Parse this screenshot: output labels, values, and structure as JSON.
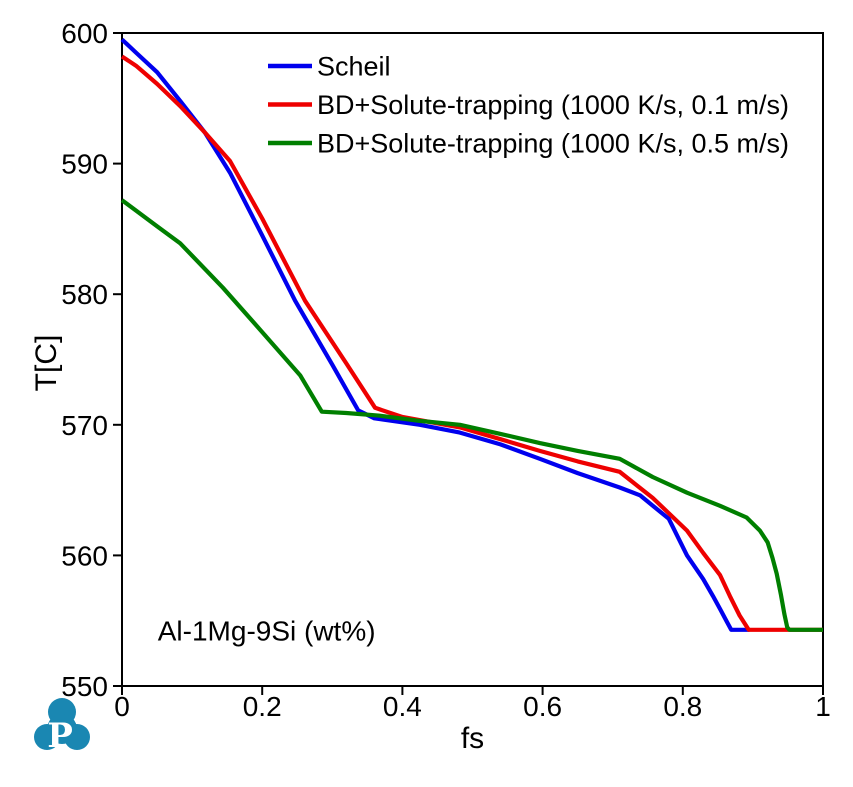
{
  "chart_data": {
    "type": "line",
    "title": "",
    "xlabel": "fs",
    "ylabel": "T[C]",
    "xlim": [
      0,
      1
    ],
    "ylim": [
      550,
      600
    ],
    "xticks": [
      0,
      0.2,
      0.4,
      0.6,
      0.8,
      1
    ],
    "yticks": [
      550,
      560,
      570,
      580,
      590,
      600
    ],
    "grid": false,
    "legend": {
      "position": "top-left-inside"
    },
    "annotation": {
      "text": "Al-1Mg-9Si (wt%)",
      "fs": 0.051,
      "T": 553.5
    },
    "series": [
      {
        "name": "Scheil",
        "color": "#0000EE",
        "points": [
          [
            0,
            599.5
          ],
          [
            0.02,
            598.5
          ],
          [
            0.05,
            597.0
          ],
          [
            0.083,
            594.8
          ],
          [
            0.118,
            592.4
          ],
          [
            0.154,
            589.3
          ],
          [
            0.2,
            584.5
          ],
          [
            0.247,
            579.5
          ],
          [
            0.3,
            574.6
          ],
          [
            0.337,
            571.1
          ],
          [
            0.36,
            570.5
          ],
          [
            0.425,
            570.0
          ],
          [
            0.482,
            569.4
          ],
          [
            0.54,
            568.5
          ],
          [
            0.596,
            567.4
          ],
          [
            0.65,
            566.3
          ],
          [
            0.71,
            565.2
          ],
          [
            0.739,
            564.6
          ],
          [
            0.78,
            562.8
          ],
          [
            0.806,
            560.0
          ],
          [
            0.829,
            558.2
          ],
          [
            0.843,
            556.9
          ],
          [
            0.853,
            555.9
          ],
          [
            0.863,
            554.9
          ],
          [
            0.869,
            554.3
          ],
          [
            0.895,
            554.3
          ]
        ]
      },
      {
        "name": "BD+Solute-trapping (1000 K/s, 0.1 m/s)",
        "color": "#EE0000",
        "points": [
          [
            0,
            598.2
          ],
          [
            0.02,
            597.5
          ],
          [
            0.05,
            596.1
          ],
          [
            0.083,
            594.4
          ],
          [
            0.118,
            592.4
          ],
          [
            0.154,
            590.2
          ],
          [
            0.2,
            585.8
          ],
          [
            0.261,
            579.5
          ],
          [
            0.32,
            574.7
          ],
          [
            0.361,
            571.3
          ],
          [
            0.4,
            570.6
          ],
          [
            0.482,
            569.8
          ],
          [
            0.54,
            568.9
          ],
          [
            0.596,
            568.0
          ],
          [
            0.65,
            567.2
          ],
          [
            0.71,
            566.4
          ],
          [
            0.757,
            564.4
          ],
          [
            0.806,
            561.9
          ],
          [
            0.829,
            560.2
          ],
          [
            0.853,
            558.5
          ],
          [
            0.867,
            556.9
          ],
          [
            0.881,
            555.4
          ],
          [
            0.894,
            554.3
          ],
          [
            1,
            554.3
          ]
        ]
      },
      {
        "name": "BD+Solute-trapping (1000 K/s, 0.5 m/s)",
        "color": "#007F00",
        "points": [
          [
            0,
            587.2
          ],
          [
            0.02,
            586.4
          ],
          [
            0.05,
            585.2
          ],
          [
            0.083,
            583.9
          ],
          [
            0.144,
            580.5
          ],
          [
            0.2,
            577.1
          ],
          [
            0.254,
            573.8
          ],
          [
            0.285,
            571.0
          ],
          [
            0.32,
            570.9
          ],
          [
            0.368,
            570.7
          ],
          [
            0.425,
            570.3
          ],
          [
            0.482,
            570.0
          ],
          [
            0.54,
            569.3
          ],
          [
            0.596,
            568.6
          ],
          [
            0.65,
            568.0
          ],
          [
            0.71,
            567.4
          ],
          [
            0.757,
            566.0
          ],
          [
            0.806,
            564.8
          ],
          [
            0.853,
            563.8
          ],
          [
            0.891,
            562.9
          ],
          [
            0.91,
            561.9
          ],
          [
            0.921,
            561.0
          ],
          [
            0.928,
            559.8
          ],
          [
            0.934,
            558.6
          ],
          [
            0.94,
            557.0
          ],
          [
            0.945,
            555.5
          ],
          [
            0.949,
            554.5
          ],
          [
            0.952,
            554.3
          ],
          [
            1,
            554.3
          ]
        ]
      }
    ]
  },
  "logo": {
    "letter": "P",
    "color": "#1A87B2"
  },
  "colors": {
    "axis": "#000000",
    "text": "#000000",
    "background": "#FFFFFF"
  }
}
